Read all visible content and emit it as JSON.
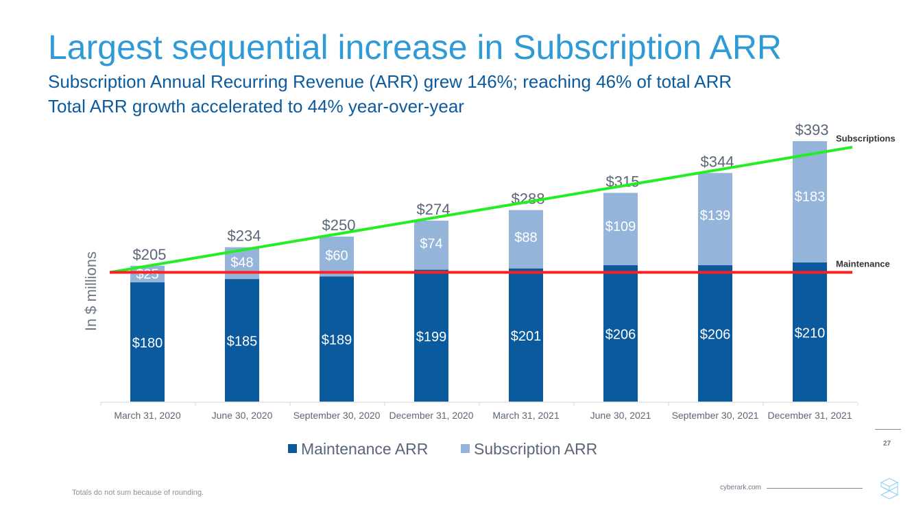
{
  "slide": {
    "title": "Largest sequential increase in Subscription ARR",
    "subtitle_1": "Subscription Annual Recurring Revenue (ARR) grew 146%; reaching 46% of total ARR",
    "subtitle_2": "Total ARR growth accelerated to 44% year-over-year",
    "footnote": "Totals do not sum because of rounding.",
    "website": "cyberark.com",
    "page_number": "27",
    "logo_text": "cyberark"
  },
  "chart_data": {
    "type": "bar",
    "stacked": true,
    "ylabel": "In $ millions",
    "categories": [
      "March 31, 2020",
      "June 30, 2020",
      "September 30, 2020",
      "December 31, 2020",
      "March 31, 2021",
      "June 30, 2021",
      "September 30, 2021",
      "December 31, 2021"
    ],
    "series": [
      {
        "name": "Maintenance ARR",
        "color": "#0b5a9e",
        "values": [
          180,
          185,
          189,
          199,
          201,
          206,
          206,
          210
        ],
        "labels": [
          "$180",
          "$185",
          "$189",
          "$199",
          "$201",
          "$206",
          "$206",
          "$210"
        ]
      },
      {
        "name": "Subscription ARR",
        "color": "#95b4da",
        "values": [
          25,
          48,
          60,
          74,
          88,
          109,
          139,
          183
        ],
        "labels": [
          "$25",
          "$48",
          "$60",
          "$74",
          "$88",
          "$109",
          "$139",
          "$183"
        ]
      }
    ],
    "totals": [
      "$205",
      "$234",
      "$250",
      "$274",
      "$288",
      "$315",
      "$344",
      "$393"
    ],
    "ylim": [
      0,
      400
    ],
    "grid": false,
    "legend_position": "bottom",
    "annotations": [
      {
        "label": "Subscriptions",
        "color": "#22ee22",
        "from": 195,
        "to": 384
      },
      {
        "label": "Maintenance",
        "color": "#ff1f1f",
        "from": 195,
        "to": 195
      }
    ]
  }
}
